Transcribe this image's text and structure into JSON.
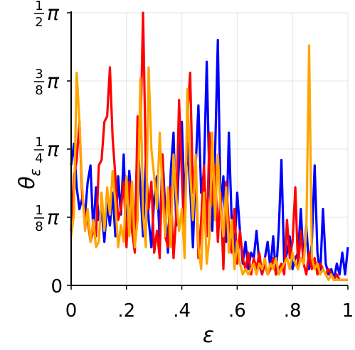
{
  "chart_data": {
    "type": "line",
    "title": "",
    "xlabel": "ε",
    "ylabel": "θ",
    "ylabel_subscript": "ε",
    "xlim": [
      0,
      1
    ],
    "ylim": [
      0,
      0.5
    ],
    "grid": true,
    "x_ticks": [
      {
        "value": 0,
        "label": "0"
      },
      {
        "value": 0.2,
        "label": ".2"
      },
      {
        "value": 0.4,
        "label": ".4"
      },
      {
        "value": 0.6,
        "label": ".6"
      },
      {
        "value": 0.8,
        "label": ".8"
      },
      {
        "value": 1,
        "label": "1"
      }
    ],
    "y_ticks": [
      {
        "value": 0,
        "num": "",
        "den": "",
        "label": "0"
      },
      {
        "value": 0.125,
        "num": "1",
        "den": "8",
        "label": "π"
      },
      {
        "value": 0.25,
        "num": "1",
        "den": "4",
        "label": "π"
      },
      {
        "value": 0.375,
        "num": "3",
        "den": "8",
        "label": "π"
      },
      {
        "value": 0.5,
        "num": "1",
        "den": "2",
        "label": "π"
      }
    ],
    "series": [
      {
        "color": "#0000ff",
        "points": [
          [
            0.0,
            0.22
          ],
          [
            0.01,
            0.26
          ],
          [
            0.02,
            0.18
          ],
          [
            0.03,
            0.14
          ],
          [
            0.04,
            0.16
          ],
          [
            0.05,
            0.13
          ],
          [
            0.06,
            0.19
          ],
          [
            0.07,
            0.22
          ],
          [
            0.08,
            0.1
          ],
          [
            0.09,
            0.18
          ],
          [
            0.1,
            0.12
          ],
          [
            0.11,
            0.14
          ],
          [
            0.12,
            0.08
          ],
          [
            0.13,
            0.15
          ],
          [
            0.14,
            0.11
          ],
          [
            0.15,
            0.17
          ],
          [
            0.16,
            0.09
          ],
          [
            0.17,
            0.2
          ],
          [
            0.18,
            0.13
          ],
          [
            0.19,
            0.24
          ],
          [
            0.2,
            0.09
          ],
          [
            0.21,
            0.21
          ],
          [
            0.22,
            0.15
          ],
          [
            0.23,
            0.1
          ],
          [
            0.24,
            0.27
          ],
          [
            0.25,
            0.18
          ],
          [
            0.26,
            0.09
          ],
          [
            0.27,
            0.23
          ],
          [
            0.28,
            0.12
          ],
          [
            0.29,
            0.07
          ],
          [
            0.3,
            0.16
          ],
          [
            0.31,
            0.2
          ],
          [
            0.32,
            0.08
          ],
          [
            0.33,
            0.24
          ],
          [
            0.34,
            0.14
          ],
          [
            0.35,
            0.06
          ],
          [
            0.36,
            0.21
          ],
          [
            0.37,
            0.28
          ],
          [
            0.38,
            0.11
          ],
          [
            0.39,
            0.23
          ],
          [
            0.4,
            0.3
          ],
          [
            0.41,
            0.15
          ],
          [
            0.42,
            0.26
          ],
          [
            0.43,
            0.18
          ],
          [
            0.44,
            0.07
          ],
          [
            0.45,
            0.22
          ],
          [
            0.46,
            0.33
          ],
          [
            0.47,
            0.17
          ],
          [
            0.48,
            0.21
          ],
          [
            0.49,
            0.41
          ],
          [
            0.5,
            0.18
          ],
          [
            0.51,
            0.1
          ],
          [
            0.52,
            0.24
          ],
          [
            0.53,
            0.45
          ],
          [
            0.54,
            0.14
          ],
          [
            0.55,
            0.2
          ],
          [
            0.56,
            0.08
          ],
          [
            0.57,
            0.28
          ],
          [
            0.58,
            0.12
          ],
          [
            0.59,
            0.06
          ],
          [
            0.6,
            0.17
          ],
          [
            0.61,
            0.1
          ],
          [
            0.62,
            0.04
          ],
          [
            0.63,
            0.08
          ],
          [
            0.64,
            0.03
          ],
          [
            0.65,
            0.06
          ],
          [
            0.66,
            0.05
          ],
          [
            0.67,
            0.1
          ],
          [
            0.68,
            0.04
          ],
          [
            0.69,
            0.02
          ],
          [
            0.7,
            0.05
          ],
          [
            0.71,
            0.08
          ],
          [
            0.72,
            0.03
          ],
          [
            0.73,
            0.09
          ],
          [
            0.74,
            0.02
          ],
          [
            0.75,
            0.1
          ],
          [
            0.76,
            0.23
          ],
          [
            0.77,
            0.04
          ],
          [
            0.78,
            0.06
          ],
          [
            0.79,
            0.09
          ],
          [
            0.8,
            0.03
          ],
          [
            0.81,
            0.05
          ],
          [
            0.82,
            0.06
          ],
          [
            0.83,
            0.14
          ],
          [
            0.84,
            0.04
          ],
          [
            0.85,
            0.11
          ],
          [
            0.86,
            0.03
          ],
          [
            0.87,
            0.08
          ],
          [
            0.88,
            0.22
          ],
          [
            0.89,
            0.06
          ],
          [
            0.9,
            0.02
          ],
          [
            0.91,
            0.14
          ],
          [
            0.92,
            0.04
          ],
          [
            0.93,
            0.02
          ],
          [
            0.94,
            0.03
          ],
          [
            0.95,
            0.01
          ],
          [
            0.96,
            0.04
          ],
          [
            0.97,
            0.02
          ],
          [
            0.98,
            0.06
          ],
          [
            0.99,
            0.02
          ],
          [
            1.0,
            0.07
          ]
        ]
      },
      {
        "color": "#ff0000",
        "points": [
          [
            0.0,
            0.1
          ],
          [
            0.01,
            0.2
          ],
          [
            0.02,
            0.23
          ],
          [
            0.03,
            0.3
          ],
          [
            0.04,
            0.16
          ],
          [
            0.05,
            0.13
          ],
          [
            0.06,
            0.12
          ],
          [
            0.07,
            0.08
          ],
          [
            0.08,
            0.1
          ],
          [
            0.09,
            0.09
          ],
          [
            0.1,
            0.22
          ],
          [
            0.11,
            0.23
          ],
          [
            0.12,
            0.3
          ],
          [
            0.13,
            0.31
          ],
          [
            0.14,
            0.4
          ],
          [
            0.15,
            0.27
          ],
          [
            0.16,
            0.2
          ],
          [
            0.17,
            0.12
          ],
          [
            0.18,
            0.14
          ],
          [
            0.19,
            0.19
          ],
          [
            0.2,
            0.07
          ],
          [
            0.21,
            0.19
          ],
          [
            0.22,
            0.1
          ],
          [
            0.23,
            0.06
          ],
          [
            0.24,
            0.31
          ],
          [
            0.25,
            0.27
          ],
          [
            0.26,
            0.5
          ],
          [
            0.27,
            0.22
          ],
          [
            0.28,
            0.14
          ],
          [
            0.29,
            0.19
          ],
          [
            0.3,
            0.06
          ],
          [
            0.31,
            0.1
          ],
          [
            0.32,
            0.05
          ],
          [
            0.33,
            0.24
          ],
          [
            0.34,
            0.09
          ],
          [
            0.35,
            0.07
          ],
          [
            0.36,
            0.18
          ],
          [
            0.37,
            0.05
          ],
          [
            0.38,
            0.13
          ],
          [
            0.39,
            0.34
          ],
          [
            0.4,
            0.2
          ],
          [
            0.41,
            0.08
          ],
          [
            0.42,
            0.31
          ],
          [
            0.43,
            0.39
          ],
          [
            0.44,
            0.17
          ],
          [
            0.45,
            0.23
          ],
          [
            0.46,
            0.05
          ],
          [
            0.47,
            0.12
          ],
          [
            0.48,
            0.22
          ],
          [
            0.49,
            0.09
          ],
          [
            0.5,
            0.28
          ],
          [
            0.51,
            0.15
          ],
          [
            0.52,
            0.22
          ],
          [
            0.53,
            0.08
          ],
          [
            0.54,
            0.17
          ],
          [
            0.55,
            0.03
          ],
          [
            0.56,
            0.19
          ],
          [
            0.57,
            0.11
          ],
          [
            0.58,
            0.06
          ],
          [
            0.59,
            0.14
          ],
          [
            0.6,
            0.04
          ],
          [
            0.61,
            0.1
          ],
          [
            0.62,
            0.05
          ],
          [
            0.63,
            0.03
          ],
          [
            0.64,
            0.06
          ],
          [
            0.65,
            0.02
          ],
          [
            0.66,
            0.05
          ],
          [
            0.67,
            0.03
          ],
          [
            0.68,
            0.06
          ],
          [
            0.69,
            0.02
          ],
          [
            0.7,
            0.04
          ],
          [
            0.71,
            0.02
          ],
          [
            0.72,
            0.03
          ],
          [
            0.73,
            0.05
          ],
          [
            0.74,
            0.02
          ],
          [
            0.75,
            0.03
          ],
          [
            0.76,
            0.04
          ],
          [
            0.77,
            0.02
          ],
          [
            0.78,
            0.12
          ],
          [
            0.79,
            0.05
          ],
          [
            0.8,
            0.08
          ],
          [
            0.81,
            0.18
          ],
          [
            0.82,
            0.03
          ],
          [
            0.83,
            0.1
          ],
          [
            0.84,
            0.04
          ],
          [
            0.85,
            0.02
          ],
          [
            0.86,
            0.06
          ],
          [
            0.87,
            0.03
          ],
          [
            0.88,
            0.05
          ],
          [
            0.89,
            0.02
          ],
          [
            0.9,
            0.04
          ],
          [
            0.91,
            0.03
          ],
          [
            0.92,
            0.02
          ],
          [
            0.93,
            0.03
          ],
          [
            0.94,
            0.02
          ],
          [
            0.95,
            0.01
          ],
          [
            0.96,
            0.02
          ],
          [
            0.97,
            0.01
          ],
          [
            0.98,
            0.01
          ],
          [
            0.99,
            0.01
          ],
          [
            1.0,
            0.01
          ]
        ]
      },
      {
        "color": "#ffa500",
        "points": [
          [
            0.0,
            0.09
          ],
          [
            0.01,
            0.13
          ],
          [
            0.02,
            0.39
          ],
          [
            0.03,
            0.3
          ],
          [
            0.04,
            0.18
          ],
          [
            0.05,
            0.1
          ],
          [
            0.06,
            0.14
          ],
          [
            0.07,
            0.08
          ],
          [
            0.08,
            0.12
          ],
          [
            0.09,
            0.07
          ],
          [
            0.1,
            0.08
          ],
          [
            0.11,
            0.17
          ],
          [
            0.12,
            0.1
          ],
          [
            0.13,
            0.18
          ],
          [
            0.14,
            0.13
          ],
          [
            0.15,
            0.21
          ],
          [
            0.16,
            0.15
          ],
          [
            0.17,
            0.07
          ],
          [
            0.18,
            0.11
          ],
          [
            0.19,
            0.08
          ],
          [
            0.2,
            0.2
          ],
          [
            0.21,
            0.09
          ],
          [
            0.22,
            0.19
          ],
          [
            0.23,
            0.07
          ],
          [
            0.24,
            0.12
          ],
          [
            0.25,
            0.38
          ],
          [
            0.26,
            0.13
          ],
          [
            0.27,
            0.07
          ],
          [
            0.28,
            0.4
          ],
          [
            0.29,
            0.25
          ],
          [
            0.3,
            0.2
          ],
          [
            0.31,
            0.14
          ],
          [
            0.32,
            0.28
          ],
          [
            0.33,
            0.17
          ],
          [
            0.34,
            0.09
          ],
          [
            0.35,
            0.18
          ],
          [
            0.36,
            0.07
          ],
          [
            0.37,
            0.24
          ],
          [
            0.38,
            0.16
          ],
          [
            0.39,
            0.1
          ],
          [
            0.4,
            0.14
          ],
          [
            0.41,
            0.05
          ],
          [
            0.42,
            0.36
          ],
          [
            0.43,
            0.21
          ],
          [
            0.44,
            0.12
          ],
          [
            0.45,
            0.24
          ],
          [
            0.46,
            0.07
          ],
          [
            0.47,
            0.03
          ],
          [
            0.48,
            0.17
          ],
          [
            0.49,
            0.04
          ],
          [
            0.5,
            0.09
          ],
          [
            0.51,
            0.28
          ],
          [
            0.52,
            0.12
          ],
          [
            0.53,
            0.24
          ],
          [
            0.54,
            0.14
          ],
          [
            0.55,
            0.09
          ],
          [
            0.56,
            0.18
          ],
          [
            0.57,
            0.06
          ],
          [
            0.58,
            0.12
          ],
          [
            0.59,
            0.03
          ],
          [
            0.6,
            0.08
          ],
          [
            0.61,
            0.04
          ],
          [
            0.62,
            0.02
          ],
          [
            0.63,
            0.03
          ],
          [
            0.64,
            0.02
          ],
          [
            0.65,
            0.03
          ],
          [
            0.66,
            0.04
          ],
          [
            0.67,
            0.02
          ],
          [
            0.68,
            0.04
          ],
          [
            0.69,
            0.03
          ],
          [
            0.7,
            0.05
          ],
          [
            0.71,
            0.02
          ],
          [
            0.72,
            0.04
          ],
          [
            0.73,
            0.03
          ],
          [
            0.74,
            0.05
          ],
          [
            0.75,
            0.02
          ],
          [
            0.76,
            0.03
          ],
          [
            0.77,
            0.04
          ],
          [
            0.78,
            0.05
          ],
          [
            0.79,
            0.03
          ],
          [
            0.8,
            0.06
          ],
          [
            0.81,
            0.04
          ],
          [
            0.82,
            0.03
          ],
          [
            0.83,
            0.05
          ],
          [
            0.84,
            0.04
          ],
          [
            0.85,
            0.1
          ],
          [
            0.86,
            0.44
          ],
          [
            0.87,
            0.05
          ],
          [
            0.88,
            0.03
          ],
          [
            0.89,
            0.04
          ],
          [
            0.9,
            0.02
          ],
          [
            0.91,
            0.03
          ],
          [
            0.92,
            0.02
          ],
          [
            0.93,
            0.01
          ],
          [
            0.94,
            0.02
          ],
          [
            0.95,
            0.01
          ],
          [
            0.96,
            0.01
          ],
          [
            0.97,
            0.01
          ],
          [
            0.98,
            0.01
          ],
          [
            0.99,
            0.01
          ],
          [
            1.0,
            0.01
          ]
        ]
      }
    ]
  }
}
